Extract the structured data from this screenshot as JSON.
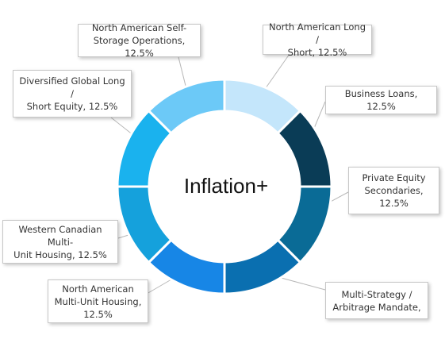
{
  "chart_data": {
    "type": "pie",
    "title": "",
    "center_text": "Inflation+",
    "slices": [
      {
        "label": "North American Long / Short",
        "value": 12.5,
        "display": "North American Long / Short, 12.5%",
        "color": "#c4e6fb"
      },
      {
        "label": "Business Loans",
        "value": 12.5,
        "display": "Business Loans, 12.5%",
        "color": "#0a3c56"
      },
      {
        "label": "Private Equity Secondaries",
        "value": 12.5,
        "display": "Private Equity Secondaries, 12.5%",
        "color": "#0a6b96"
      },
      {
        "label": "Multi-Strategy / Arbitrage Mandate",
        "value": 12.5,
        "display": "Multi-Strategy / Arbitrage Mandate,",
        "color": "#0a6fb0"
      },
      {
        "label": "North American Multi-Unit Housing",
        "value": 12.5,
        "display": "North American Multi-Unit Housing, 12.5%",
        "color": "#1786e6"
      },
      {
        "label": "Western Canadian Multi-Unit Housing",
        "value": 12.5,
        "display": "Western Canadian Multi-Unit Housing, 12.5%",
        "color": "#15a1dc"
      },
      {
        "label": "Diversified Global Long / Short Equity",
        "value": 12.5,
        "display": "Diversified Global Long / Short Equity, 12.5%",
        "color": "#1ab2ee"
      },
      {
        "label": "North American Self-Storage Operations",
        "value": 12.5,
        "display": "North American Self-Storage Operations, 12.5%",
        "color": "#6cc9f7"
      }
    ]
  },
  "callouts": [
    {
      "line1": "North American Long /",
      "line2": "Short, 12.5%"
    },
    {
      "line1": "Business Loans, 12.5%",
      "line2": ""
    },
    {
      "line1": "Private Equity",
      "line2": "Secondaries, 12.5%"
    },
    {
      "line1": "Multi-Strategy /",
      "line2": "Arbitrage Mandate,"
    },
    {
      "line1": "North American",
      "line2": "Multi-Unit Housing,",
      "line3": "12.5%"
    },
    {
      "line1": "Western Canadian Multi-",
      "line2": "Unit Housing, 12.5%"
    },
    {
      "line1": "Diversified Global Long /",
      "line2": "Short Equity, 12.5%"
    },
    {
      "line1": "North American Self-",
      "line2": "Storage Operations, 12.5%"
    }
  ]
}
